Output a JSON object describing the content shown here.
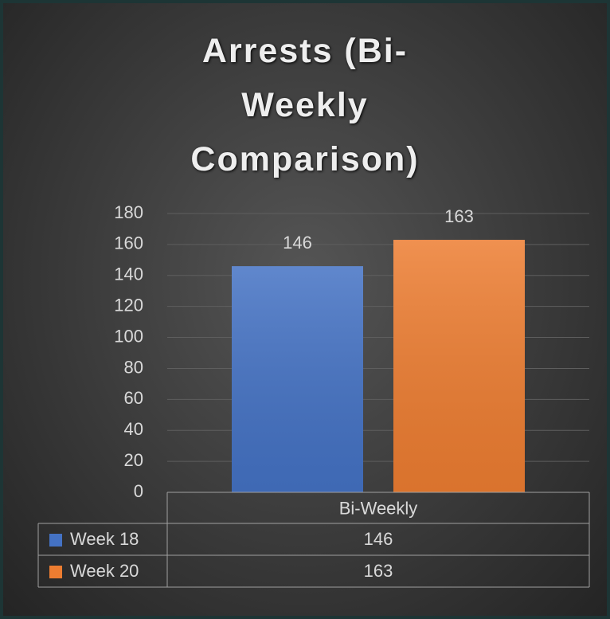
{
  "chart_data": {
    "type": "bar",
    "title": "Arrests (Bi-Weekly Comparison)",
    "categories": [
      "Bi-Weekly"
    ],
    "series": [
      {
        "name": "Week 18",
        "color": "#4472c4",
        "values": [
          146
        ]
      },
      {
        "name": "Week 20",
        "color": "#ed7d31",
        "values": [
          163
        ]
      }
    ],
    "ylim": [
      0,
      180
    ],
    "yticks": [
      0,
      20,
      40,
      60,
      80,
      100,
      120,
      140,
      160,
      180
    ],
    "grid": true,
    "data_labels": true,
    "data_table": true
  }
}
